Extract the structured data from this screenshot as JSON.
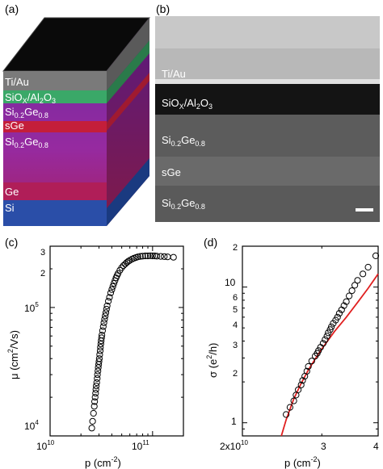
{
  "panels": {
    "a": {
      "label": "(a)"
    },
    "b": {
      "label": "(b)"
    },
    "c": {
      "label": "(c)"
    },
    "d": {
      "label": "(d)"
    }
  },
  "layer_stack": {
    "layers": [
      {
        "text": "Ti/Au",
        "color": "#808080"
      },
      {
        "text": "SiO",
        "sub": "X",
        "text2": "/Al",
        "sub2": "2",
        "text3": "O",
        "sub3": "3",
        "color": "#3ca86a"
      },
      {
        "text": "Si",
        "sub": "0.2",
        "text2": "Ge",
        "sub2": "0.8",
        "color": "#8a2aa8"
      },
      {
        "text": "sGe",
        "color": "#c8203a"
      },
      {
        "text": "Si",
        "sub": "0.2",
        "text2": "Ge",
        "sub2": "0.8",
        "color": "#8a2aa8"
      },
      {
        "text": "Ge",
        "color": "#b8205a"
      },
      {
        "text": "Si",
        "color": "#2850a8"
      }
    ]
  },
  "tem_labels": [
    {
      "text": "Ti/Au"
    },
    {
      "text": "SiO",
      "sub": "X",
      "text2": "/Al",
      "sub2": "2",
      "text3": "O",
      "sub3": "3"
    },
    {
      "text": "Si",
      "sub": "0.2",
      "text2": "Ge",
      "sub2": "0.8"
    },
    {
      "text": "sGe"
    },
    {
      "text": "Si",
      "sub": "0.2",
      "text2": "Ge",
      "sub2": "0.8"
    }
  ],
  "chart_data": [
    {
      "type": "scatter",
      "panel": "c",
      "xlabel": "p (cm",
      "xlabel_sup": "-2",
      "xlabel_end": ")",
      "ylabel": "μ (cm",
      "ylabel_sup": "2",
      "ylabel_end": "/Vs)",
      "xscale": "log",
      "yscale": "log",
      "xlim": [
        10000000000.0,
        200000000000.0
      ],
      "ylim": [
        10000.0,
        300000.0
      ],
      "x_tick_labels": [
        {
          "base": "10",
          "exp": "10"
        },
        {
          "base": "10",
          "exp": "11"
        }
      ],
      "y_tick_labels": [
        {
          "base": "10",
          "exp": "4"
        },
        {
          "base": "10",
          "exp": "5"
        },
        {
          "text": "2"
        },
        {
          "text": "3"
        }
      ],
      "marker": "open-circle",
      "x": [
        25500000000.0,
        26000000000.0,
        26500000000.0,
        27000000000.0,
        27200000000.0,
        27500000000.0,
        27800000000.0,
        28000000000.0,
        28200000000.0,
        28500000000.0,
        28800000000.0,
        29000000000.0,
        29300000000.0,
        29500000000.0,
        29800000000.0,
        30000000000.0,
        30200000000.0,
        30500000000.0,
        30800000000.0,
        31000000000.0,
        31300000000.0,
        31500000000.0,
        31800000000.0,
        32000000000.0,
        32500000000.0,
        33000000000.0,
        33500000000.0,
        34000000000.0,
        34500000000.0,
        35000000000.0,
        35500000000.0,
        36000000000.0,
        37000000000.0,
        38000000000.0,
        39000000000.0,
        40000000000.0,
        41000000000.0,
        42000000000.0,
        43000000000.0,
        44000000000.0,
        45000000000.0,
        46000000000.0,
        48000000000.0,
        50000000000.0,
        52000000000.0,
        54000000000.0,
        56000000000.0,
        58000000000.0,
        60000000000.0,
        63000000000.0,
        66000000000.0,
        69000000000.0,
        72000000000.0,
        76000000000.0,
        80000000000.0,
        85000000000.0,
        90000000000.0,
        95000000000.0,
        100000000000.0,
        105000000000.0,
        110000000000.0,
        120000000000.0,
        130000000000.0,
        140000000000.0,
        160000000000.0
      ],
      "y": [
        11500.0,
        13000.0,
        15000.0,
        17000.0,
        18500.0,
        20000.0,
        21500.0,
        23000.0,
        24500.0,
        26000.0,
        28000.0,
        30000.0,
        32000.0,
        34000.0,
        36000.0,
        38000.0,
        40000.0,
        43000.0,
        46000.0,
        49000.0,
        52000.0,
        55000.0,
        58000.0,
        61000.0,
        66000.0,
        71000.0,
        76000.0,
        81000.0,
        86000.0,
        91000.0,
        97000.0,
        103000.0,
        112000.0,
        120000.0,
        130000.0,
        138000.0,
        146000.0,
        154000.0,
        162000.0,
        170000.0,
        177000.0,
        184000.0,
        195000.0,
        204000.0,
        212000.0,
        218000.0,
        224000.0,
        229000.0,
        233000.0,
        238000.0,
        242000.0,
        245000.0,
        248000.0,
        250000.0,
        251000.0,
        252000.0,
        252000.0,
        253000.0,
        252000.0,
        252000.0,
        251000.0,
        250000.0,
        249000.0,
        248000.0,
        246000.0
      ]
    },
    {
      "type": "scatter",
      "panel": "d",
      "xlabel": "p (cm",
      "xlabel_sup": "-2",
      "xlabel_end": ")",
      "ylabel": "σ (e",
      "ylabel_sup": "2",
      "ylabel_end": "/h)",
      "xscale": "log",
      "yscale": "log",
      "xlim": [
        20000000000.0,
        40000000000.0
      ],
      "ylim": [
        0.8,
        20
      ],
      "x_tick_labels": [
        {
          "text": "2x10",
          "exp": "10"
        },
        {
          "text": "3"
        },
        {
          "text": "4"
        }
      ],
      "y_tick_labels": [
        {
          "text": "1"
        },
        {
          "text": "2"
        },
        {
          "text": "3"
        },
        {
          "text": "4"
        },
        {
          "text": "5"
        },
        {
          "text": "6"
        },
        {
          "text": "10"
        },
        {
          "text": "2"
        }
      ],
      "marker": "open-circle",
      "fit_color": "#e02020",
      "x": [
        25000000000.0,
        25500000000.0,
        26000000000.0,
        26300000000.0,
        26600000000.0,
        27000000000.0,
        27200000000.0,
        27500000000.0,
        27800000000.0,
        28000000000.0,
        28500000000.0,
        29000000000.0,
        29300000000.0,
        29500000000.0,
        29800000000.0,
        30200000000.0,
        30500000000.0,
        30800000000.0,
        31000000000.0,
        31300000000.0,
        31500000000.0,
        31800000000.0,
        32200000000.0,
        32500000000.0,
        32800000000.0,
        33200000000.0,
        33600000000.0,
        34000000000.0,
        34500000000.0,
        35000000000.0,
        35500000000.0,
        36000000000.0,
        37000000000.0,
        38000000000.0,
        39500000000.0
      ],
      "y": [
        1.15,
        1.3,
        1.45,
        1.6,
        1.75,
        1.9,
        2.05,
        2.2,
        2.4,
        2.6,
        2.85,
        3.1,
        3.25,
        3.4,
        3.6,
        3.85,
        4.1,
        4.35,
        4.6,
        4.85,
        5.1,
        5.4,
        5.7,
        6.0,
        6.4,
        6.8,
        7.3,
        7.8,
        8.6,
        9.4,
        10.3,
        11.2,
        12.5,
        14.0,
        17.0
      ],
      "fit_x": [
        24400000000.0,
        25000000000.0,
        26000000000.0,
        27000000000.0,
        28000000000.0,
        29000000000.0,
        30000000000.0,
        32000000000.0,
        34000000000.0,
        36000000000.0,
        38000000000.0,
        40000000000.0
      ],
      "fit_y": [
        0.8,
        1.05,
        1.5,
        1.95,
        2.45,
        2.95,
        3.5,
        4.7,
        6.0,
        7.7,
        9.8,
        12.5
      ]
    }
  ]
}
